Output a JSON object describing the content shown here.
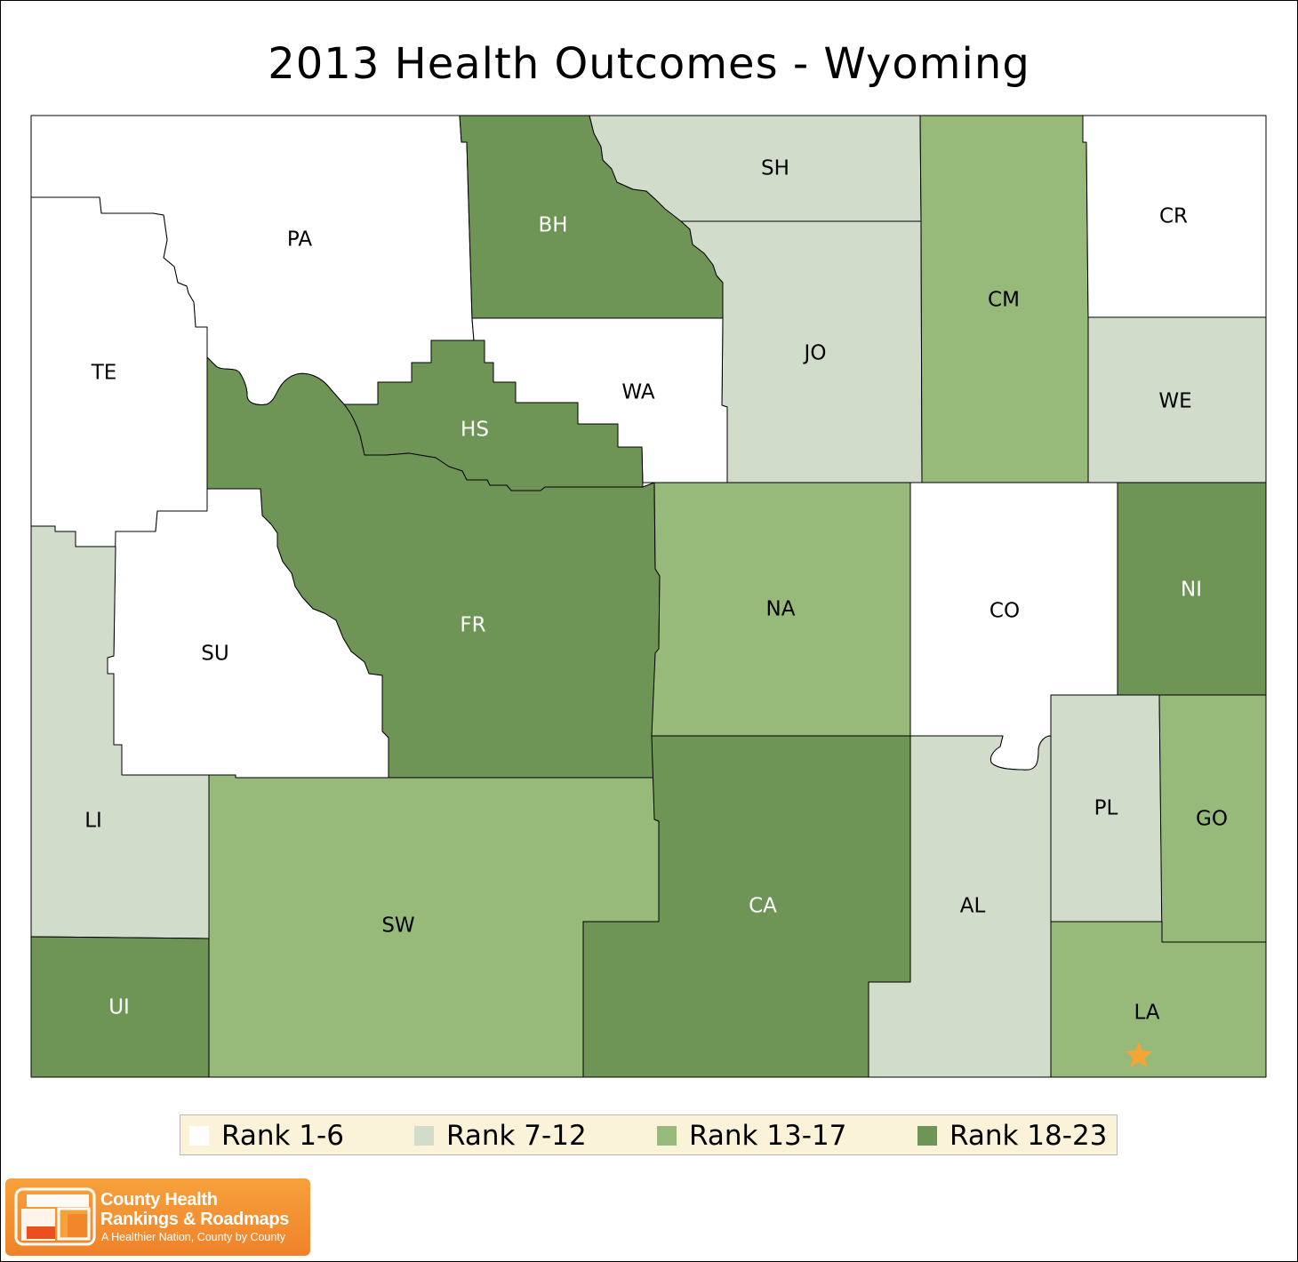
{
  "title": "2013 Health Outcomes - Wyoming",
  "colors": {
    "rank_1_6": "#ffffff",
    "rank_7_12": "#d1dccb",
    "rank_13_17": "#97ba7b",
    "rank_18_23": "#6f9556",
    "star": "#f4a535"
  },
  "legend": [
    {
      "label": "Rank 1-6",
      "color": "#ffffff"
    },
    {
      "label": "Rank 7-12",
      "color": "#d1dccb"
    },
    {
      "label": "Rank 13-17",
      "color": "#97ba7b"
    },
    {
      "label": "Rank 18-23",
      "color": "#6f9556"
    }
  ],
  "counties": {
    "PA": {
      "label": "PA",
      "rank_group": "Rank 1-6"
    },
    "TE": {
      "label": "TE",
      "rank_group": "Rank 1-6"
    },
    "SU": {
      "label": "SU",
      "rank_group": "Rank 1-6"
    },
    "WA": {
      "label": "WA",
      "rank_group": "Rank 1-6"
    },
    "CR": {
      "label": "CR",
      "rank_group": "Rank 1-6"
    },
    "CO": {
      "label": "CO",
      "rank_group": "Rank 1-6"
    },
    "SH": {
      "label": "SH",
      "rank_group": "Rank 7-12"
    },
    "JO": {
      "label": "JO",
      "rank_group": "Rank 7-12"
    },
    "WE": {
      "label": "WE",
      "rank_group": "Rank 7-12"
    },
    "LI": {
      "label": "LI",
      "rank_group": "Rank 7-12"
    },
    "AL": {
      "label": "AL",
      "rank_group": "Rank 7-12"
    },
    "PL": {
      "label": "PL",
      "rank_group": "Rank 7-12"
    },
    "CM": {
      "label": "CM",
      "rank_group": "Rank 13-17"
    },
    "NA": {
      "label": "NA",
      "rank_group": "Rank 13-17"
    },
    "SW": {
      "label": "SW",
      "rank_group": "Rank 13-17"
    },
    "GO": {
      "label": "GO",
      "rank_group": "Rank 13-17"
    },
    "LA": {
      "label": "LA",
      "rank_group": "Rank 13-17"
    },
    "BH": {
      "label": "BH",
      "rank_group": "Rank 18-23"
    },
    "HS": {
      "label": "HS",
      "rank_group": "Rank 18-23"
    },
    "FR": {
      "label": "FR",
      "rank_group": "Rank 18-23"
    },
    "NI": {
      "label": "NI",
      "rank_group": "Rank 18-23"
    },
    "CA": {
      "label": "CA",
      "rank_group": "Rank 18-23"
    },
    "UI": {
      "label": "UI",
      "rank_group": "Rank 18-23"
    }
  },
  "capital_marker": {
    "county": "LA",
    "icon": "star-icon"
  },
  "logo": {
    "line1": "County Health",
    "line2": "Rankings & Roadmaps",
    "tagline": "A Healthier Nation, County by County"
  }
}
